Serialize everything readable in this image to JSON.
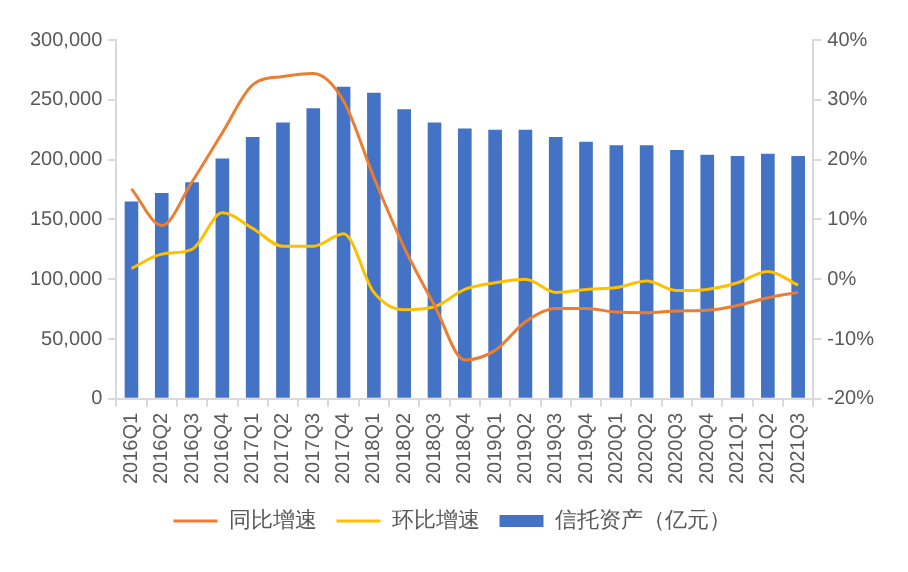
{
  "chart_data": {
    "type": "bar",
    "categories": [
      "2016Q1",
      "2016Q2",
      "2016Q3",
      "2016Q4",
      "2017Q1",
      "2017Q2",
      "2017Q3",
      "2017Q4",
      "2018Q1",
      "2018Q2",
      "2018Q3",
      "2018Q4",
      "2019Q1",
      "2019Q2",
      "2019Q3",
      "2019Q4",
      "2020Q1",
      "2020Q2",
      "2020Q3",
      "2020Q4",
      "2021Q1",
      "2021Q2",
      "2021Q3"
    ],
    "series": [
      {
        "name": "信托资产（亿元）",
        "color": "#4472c4",
        "values": [
          165000,
          172000,
          181000,
          201000,
          219000,
          231000,
          243000,
          261000,
          256000,
          242000,
          231000,
          226000,
          225000,
          225000,
          219000,
          215000,
          212000,
          212000,
          208000,
          204000,
          203000,
          205000,
          203000
        ]
      },
      {
        "name": "同比增速",
        "type": "line",
        "axis": "y2",
        "color": "#ed7d31",
        "values": [
          15.1,
          9.0,
          16.3,
          24.5,
          32.5,
          33.9,
          34.4,
          29.8,
          17,
          5.3,
          -4.4,
          -13.5,
          -11.9,
          -7.1,
          -4.9,
          -4.9,
          -5.5,
          -5.6,
          -5.3,
          -5.2,
          -4.4,
          -3.1,
          -2.2
        ]
      },
      {
        "name": "环比增速",
        "type": "line",
        "axis": "y2",
        "color": "#ffc000",
        "values": [
          1.8,
          4.2,
          5.0,
          11.1,
          8.5,
          5.5,
          5.5,
          7.6,
          -2.2,
          -5.1,
          -4.6,
          -1.7,
          -0.6,
          0,
          -2.2,
          -1.7,
          -1.4,
          -0.3,
          -1.9,
          -1.7,
          -0.6,
          1.3,
          -1.0
        ]
      }
    ],
    "ylim": [
      0,
      300000
    ],
    "yticks": [
      0,
      {
        "value": 50000,
        "label": "50,000"
      },
      {
        "value": 100000,
        "label": "100,000"
      },
      {
        "value": 150000,
        "label": "150,000"
      },
      {
        "value": 200000,
        "label": "200,000"
      },
      {
        "value": 250000,
        "label": "250,000"
      },
      {
        "value": 300000,
        "label": "300,000"
      }
    ],
    "y2lim": [
      -20,
      40
    ],
    "y2ticks": [
      {
        "value": -20,
        "label": "-20%"
      },
      {
        "value": -10,
        "label": "-10%"
      },
      {
        "value": 0,
        "label": "0%"
      },
      {
        "value": 10,
        "label": "10%"
      },
      {
        "value": 20,
        "label": "20%"
      },
      {
        "value": 30,
        "label": "30%"
      },
      {
        "value": 40,
        "label": "40%"
      }
    ],
    "grid": false,
    "legend": "bottom"
  }
}
